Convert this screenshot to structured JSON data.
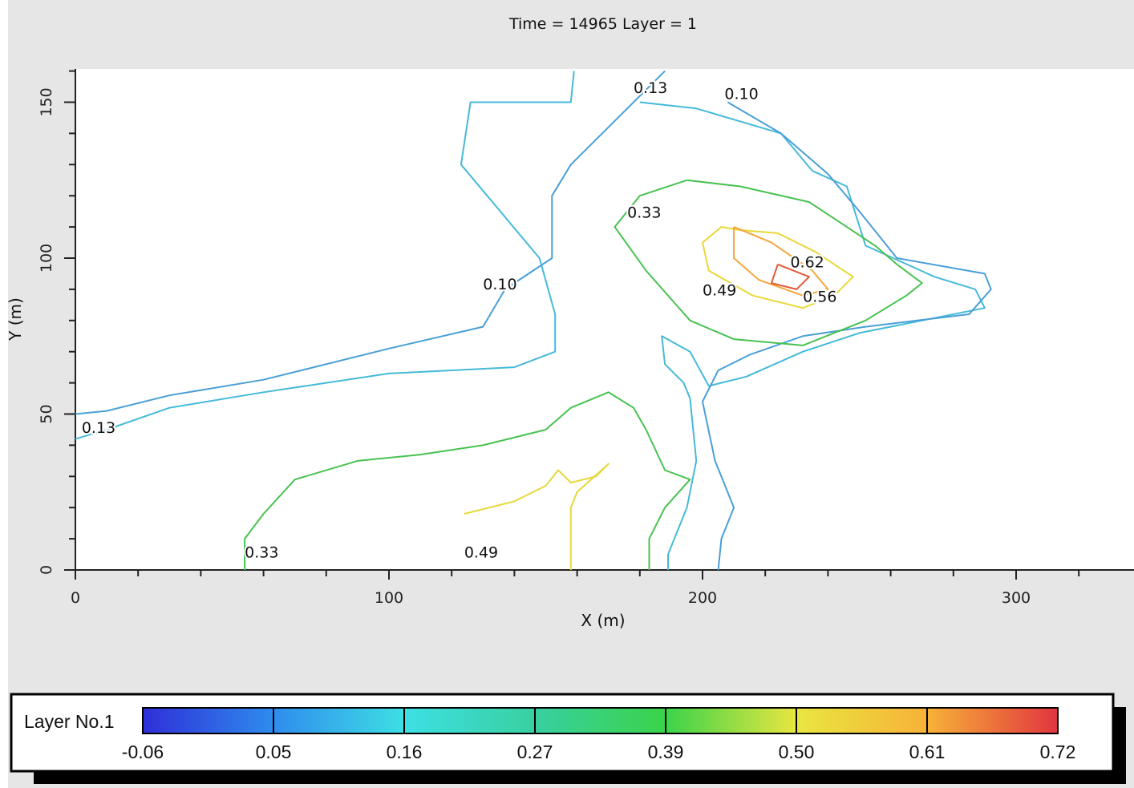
{
  "chart_data": {
    "type": "contour",
    "title": "Time = 14965 Layer = 1",
    "xlabel": "X (m)",
    "ylabel": "Y (m)",
    "xlim": [
      0,
      340
    ],
    "ylim": [
      0,
      160
    ],
    "x_ticks": [
      "0",
      "100",
      "200",
      "300"
    ],
    "y_ticks": [
      "0",
      "50",
      "100",
      "150"
    ],
    "x_tick_values": [
      0,
      100,
      200,
      300
    ],
    "y_tick_values": [
      0,
      50,
      100,
      150
    ],
    "colors": {
      "0.10": "#4a9fd6",
      "0.13": "#45bad8",
      "0.33": "#48c251",
      "0.49": "#e8d838",
      "0.56": "#f4a63c",
      "0.62": "#e05a3a"
    },
    "contours": [
      {
        "level": "0.10",
        "points": [
          [
            0,
            50
          ],
          [
            10,
            51
          ],
          [
            30,
            56
          ],
          [
            60,
            61
          ],
          [
            100,
            71
          ],
          [
            130,
            78
          ],
          [
            137,
            90
          ],
          [
            152,
            100
          ],
          [
            152,
            120
          ],
          [
            158,
            130
          ],
          [
            178,
            150
          ],
          [
            188,
            160
          ]
        ]
      },
      {
        "level": "0.13",
        "points": [
          [
            0,
            42
          ],
          [
            10,
            45
          ],
          [
            30,
            52
          ],
          [
            60,
            57
          ],
          [
            100,
            63
          ],
          [
            140,
            65
          ],
          [
            153,
            70
          ],
          [
            153,
            82
          ],
          [
            148,
            100
          ],
          [
            123,
            130
          ],
          [
            126,
            150
          ],
          [
            158,
            150
          ],
          [
            159,
            160
          ]
        ]
      },
      {
        "level": "0.13",
        "points": [
          [
            180,
            150
          ],
          [
            198,
            148
          ],
          [
            225,
            140
          ],
          [
            235,
            128
          ],
          [
            246,
            123
          ],
          [
            252,
            104
          ],
          [
            274,
            94
          ],
          [
            287,
            90
          ],
          [
            290,
            84
          ],
          [
            250,
            76
          ],
          [
            232,
            70
          ],
          [
            214,
            62
          ],
          [
            202,
            59
          ],
          [
            196,
            70
          ],
          [
            187,
            75
          ],
          [
            188,
            66
          ],
          [
            194,
            60
          ],
          [
            196,
            55
          ],
          [
            198,
            35
          ],
          [
            195,
            20
          ],
          [
            189,
            5
          ],
          [
            189,
            0
          ]
        ]
      },
      {
        "level": "0.10",
        "points": [
          [
            208,
            150
          ],
          [
            225,
            140
          ],
          [
            240,
            127
          ],
          [
            250,
            115
          ],
          [
            262,
            100
          ],
          [
            290,
            95
          ],
          [
            292,
            90
          ],
          [
            285,
            82
          ],
          [
            252,
            78
          ],
          [
            232,
            75
          ],
          [
            215,
            69
          ],
          [
            205,
            64
          ],
          [
            200,
            54
          ],
          [
            204,
            35
          ],
          [
            210,
            20
          ],
          [
            206,
            10
          ],
          [
            205,
            0
          ]
        ]
      },
      {
        "level": "0.33",
        "points": [
          [
            195,
            125
          ],
          [
            212,
            123
          ],
          [
            234,
            118
          ],
          [
            246,
            110
          ],
          [
            255,
            104
          ],
          [
            262,
            98
          ],
          [
            270,
            92
          ],
          [
            265,
            88
          ],
          [
            252,
            80
          ],
          [
            232,
            72
          ],
          [
            210,
            74
          ],
          [
            196,
            80
          ],
          [
            182,
            96
          ],
          [
            172,
            110
          ],
          [
            180,
            120
          ],
          [
            195,
            125
          ]
        ]
      },
      {
        "level": "0.33",
        "points": [
          [
            54,
            0
          ],
          [
            54,
            10
          ],
          [
            60,
            18
          ],
          [
            70,
            29
          ],
          [
            90,
            35
          ],
          [
            110,
            37
          ],
          [
            130,
            40
          ],
          [
            150,
            45
          ],
          [
            158,
            52
          ],
          [
            170,
            57
          ],
          [
            178,
            52
          ],
          [
            182,
            45
          ],
          [
            188,
            32
          ],
          [
            196,
            29
          ],
          [
            188,
            20
          ],
          [
            183,
            10
          ],
          [
            183,
            0
          ]
        ]
      },
      {
        "level": "0.49",
        "points": [
          [
            212,
            109
          ],
          [
            224,
            108
          ],
          [
            236,
            102
          ],
          [
            248,
            94
          ],
          [
            242,
            88
          ],
          [
            232,
            84
          ],
          [
            216,
            88
          ],
          [
            202,
            96
          ],
          [
            200,
            105
          ],
          [
            206,
            110
          ],
          [
            212,
            109
          ]
        ]
      },
      {
        "level": "0.49",
        "points": [
          [
            124,
            18
          ],
          [
            140,
            22
          ],
          [
            150,
            27
          ],
          [
            154,
            32
          ],
          [
            158,
            28
          ],
          [
            166,
            30
          ],
          [
            170,
            34
          ],
          [
            160,
            25
          ],
          [
            158,
            20
          ],
          [
            158,
            10
          ],
          [
            158,
            0
          ]
        ]
      },
      {
        "level": "0.56",
        "points": [
          [
            210,
            110
          ],
          [
            222,
            105
          ],
          [
            235,
            96
          ],
          [
            240,
            90
          ],
          [
            232,
            88
          ],
          [
            218,
            93
          ],
          [
            210,
            100
          ],
          [
            210,
            110
          ]
        ]
      },
      {
        "level": "0.62",
        "points": [
          [
            224,
            98
          ],
          [
            234,
            94
          ],
          [
            230,
            90
          ],
          [
            222,
            92
          ],
          [
            224,
            98
          ]
        ]
      }
    ],
    "contour_labels": [
      {
        "text": "0.13",
        "x": 2,
        "y": 44
      },
      {
        "text": "0.13",
        "x": 178,
        "y": 153
      },
      {
        "text": "0.10",
        "x": 207,
        "y": 151
      },
      {
        "text": "0.10",
        "x": 130,
        "y": 90
      },
      {
        "text": "0.33",
        "x": 176,
        "y": 113
      },
      {
        "text": "0.33",
        "x": 54,
        "y": 4
      },
      {
        "text": "0.49",
        "x": 200,
        "y": 88
      },
      {
        "text": "0.49",
        "x": 124,
        "y": 4
      },
      {
        "text": "0.56",
        "x": 232,
        "y": 86
      },
      {
        "text": "0.62",
        "x": 228,
        "y": 97
      }
    ],
    "legend": {
      "label": "Layer No.1",
      "colors": [
        "#2f2fd8",
        "#2f8cee",
        "#3de0e4",
        "#38d0a0",
        "#3ad34a",
        "#e9e640",
        "#f7b238",
        "#e2353f"
      ],
      "ticks": [
        "-0.06",
        "0.05",
        "0.16",
        "0.27",
        "0.39",
        "0.50",
        "0.61",
        "0.72"
      ]
    }
  }
}
